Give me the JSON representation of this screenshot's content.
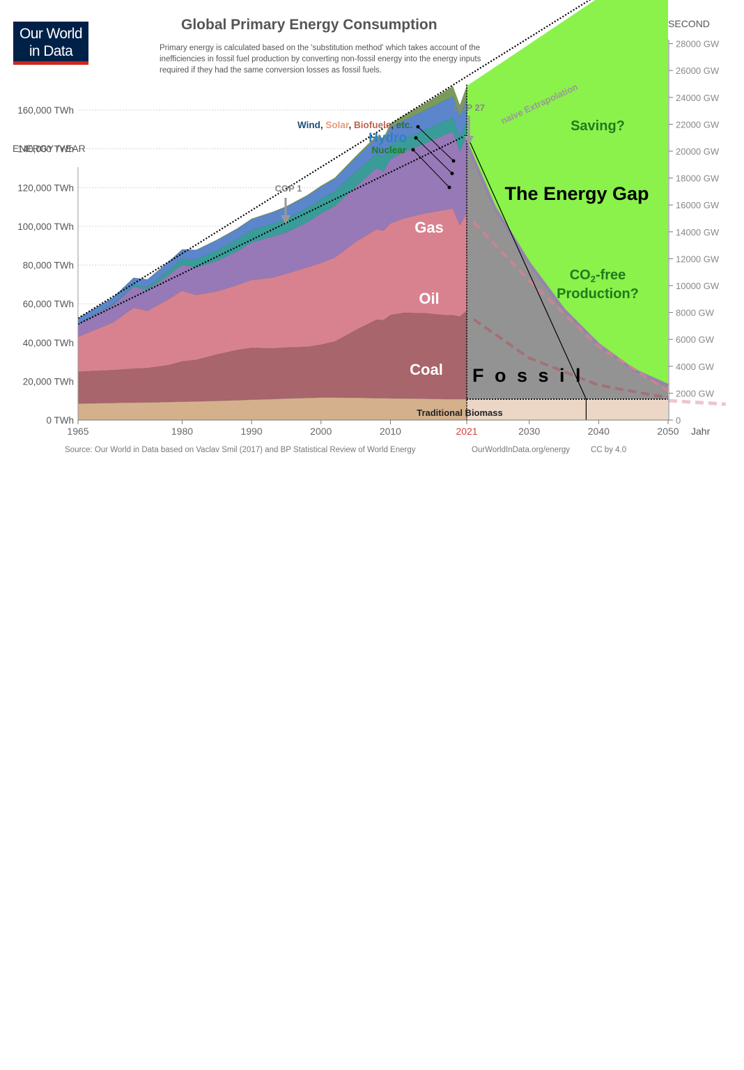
{
  "header": {
    "logo_line1": "Our World",
    "logo_line2": "in Data",
    "title": "Global Primary Energy Consumption",
    "subtitle": "Primary energy is calculated based on the 'substitution method' which takes account of the inefficiencies in fossil fuel production by converting non-fossil energy into the energy inputs required if they had the same conversion losses as fossil fuels.",
    "left_axis_title": "ENERGY /YEAR",
    "right_axis_title": "ENERGY/SECOND"
  },
  "footer": {
    "source": "Source: Our World in Data based on Vaclav Smil (2017) and BP Statistical Review of World Energy",
    "url": "OurWorldInData.org/energy",
    "license": "CC by 4.0"
  },
  "colors": {
    "biomass": "#d4b18c",
    "coal": "#a8656c",
    "oil": "#d88290",
    "gas": "#9779b8",
    "nuclear": "#3a9c98",
    "hydro": "#5b86cc",
    "renewables": "#7a9a5a",
    "gap": "#8af24a",
    "fossil_future": "#939393",
    "biomass_future": "#ecd7c7"
  },
  "chart_data": {
    "type": "area",
    "stacked": true,
    "x": [
      1965,
      1970,
      1973,
      1975,
      1978,
      1980,
      1982,
      1985,
      1988,
      1990,
      1993,
      1995,
      1998,
      2000,
      2002,
      2005,
      2008,
      2009,
      2010,
      2012,
      2015,
      2018,
      2019,
      2020,
      2021
    ],
    "series": [
      {
        "key": "biomass",
        "values": [
          8500,
          8800,
          9000,
          9100,
          9300,
          9500,
          9600,
          9900,
          10200,
          10500,
          10800,
          11100,
          11400,
          11600,
          11600,
          11500,
          11300,
          11300,
          11200,
          11100,
          11000,
          10800,
          10800,
          10800,
          10800
        ]
      },
      {
        "key": "coal",
        "values": [
          16500,
          17000,
          17500,
          17800,
          19000,
          20800,
          21500,
          24000,
          26000,
          26800,
          26200,
          26400,
          26400,
          27300,
          29000,
          35000,
          40500,
          40300,
          43000,
          44300,
          44200,
          43300,
          43400,
          42700,
          45500
        ]
      },
      {
        "key": "oil",
        "values": [
          18000,
          24500,
          31500,
          29500,
          34000,
          36500,
          33500,
          32500,
          33500,
          35000,
          36500,
          38000,
          41000,
          42200,
          43300,
          45500,
          46700,
          46200,
          47300,
          48800,
          51500,
          54500,
          55000,
          47000,
          50500
        ]
      },
      {
        "key": "gas",
        "values": [
          6500,
          9000,
          10800,
          10800,
          12300,
          13300,
          14200,
          15600,
          17600,
          19300,
          21200,
          21300,
          23200,
          25500,
          26500,
          28500,
          31500,
          30500,
          33200,
          34300,
          36000,
          38800,
          39500,
          38200,
          40300
        ]
      },
      {
        "key": "nuclear",
        "values": [
          200,
          500,
          1000,
          1500,
          2500,
          3300,
          4200,
          5700,
          6200,
          6600,
          6700,
          7100,
          7400,
          7500,
          7700,
          7800,
          7500,
          7400,
          7500,
          6900,
          7100,
          7300,
          7500,
          7100,
          7300
        ]
      },
      {
        "key": "hydro",
        "values": [
          2800,
          3300,
          3600,
          3800,
          4400,
          4600,
          4700,
          5100,
          5300,
          5400,
          5700,
          6000,
          6200,
          6300,
          6400,
          7000,
          8000,
          8300,
          8800,
          9400,
          10100,
          10600,
          10800,
          11000,
          11500
        ]
      },
      {
        "key": "renewables",
        "values": [
          50,
          60,
          70,
          80,
          100,
          120,
          150,
          200,
          250,
          300,
          350,
          400,
          450,
          500,
          600,
          900,
          1300,
          1500,
          1800,
          2500,
          3500,
          4800,
          5300,
          5700,
          6500
        ]
      }
    ],
    "left_axis": {
      "min": 0,
      "max": 160000,
      "step": 20000,
      "unit": "TWh",
      "tick_labels": [
        "0 TWh",
        "20,000 TWh",
        "40,000 TWh",
        "60,000 TWh",
        "80,000 TWh",
        "100,000 TWh",
        "120,000 TWh",
        "140,000 TWh",
        "160,000 TWh"
      ]
    },
    "right_axis": {
      "tick_labels": [
        "0",
        "2000 GW",
        "4000 GW",
        "6000 GW",
        "8000 GW",
        "10000 GW",
        "12000 GW",
        "14000 GW",
        "16000 GW",
        "18000 GW",
        "20000 GW",
        "22000 GW",
        "24000 GW",
        "26000 GW",
        "28000 GW"
      ]
    },
    "x_ticks": [
      "1965",
      "1980",
      "1990",
      "2000",
      "2010",
      "2021",
      "2030",
      "2040",
      "2050"
    ],
    "x_axis_label": "Jahr",
    "projection": {
      "extrapolation_end": [
        2050,
        242000
      ],
      "fossil_decline": [
        [
          2021,
          143000
        ],
        [
          2025,
          110000
        ],
        [
          2030,
          81000
        ],
        [
          2035,
          57000
        ],
        [
          2040,
          39000
        ],
        [
          2045,
          26000
        ],
        [
          2050,
          18000
        ]
      ],
      "biomass_level": 10800,
      "straight_decline_end_year": 2038.2,
      "dashed_lines": [
        {
          "color": "oil",
          "points": [
            [
              2022,
              102000
            ],
            [
              2030,
              72000
            ],
            [
              2040,
              38000
            ],
            [
              2050,
              15000
            ]
          ]
        },
        {
          "color": "coal",
          "points": [
            [
              2022,
              52000
            ],
            [
              2030,
              32000
            ],
            [
              2040,
              18000
            ],
            [
              2050,
              11500
            ]
          ]
        }
      ]
    },
    "labels": {
      "coal": "Coal",
      "oil": "Oil",
      "gas": "Gas",
      "nuclear": "Nuclear",
      "hydro": "Hydro",
      "wind": "Wind",
      "solar": "Solar",
      "biofuels": "Biofuels",
      "etc": "etc.",
      "biomass": "Traditional Biomass",
      "fossil": "F o s s i l",
      "energy_gap": "The Energy Gap",
      "saving": "Saving?",
      "co2_line1_pre": "CO",
      "co2_sub": "2",
      "co2_line1_post": "-free",
      "co2_line2": "Production?",
      "naive": "naive Extrapolation",
      "cop1": "COP 1",
      "cop27": "COP 27"
    }
  }
}
